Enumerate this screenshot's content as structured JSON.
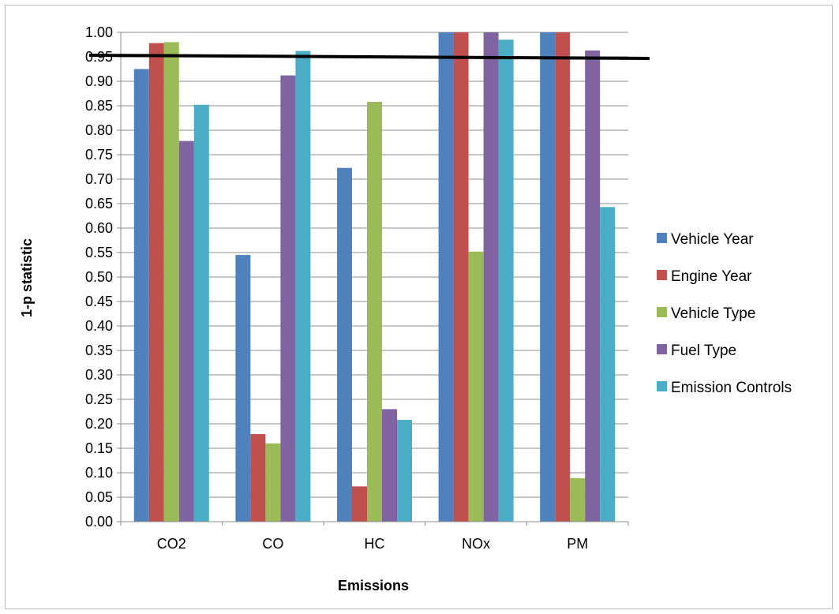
{
  "chart_data": {
    "type": "bar",
    "title": "",
    "xlabel": "Emissions",
    "ylabel": "1-p statistic",
    "ylim": [
      0,
      1
    ],
    "ytick_step": 0.05,
    "grid": true,
    "legend_position": "right",
    "categories": [
      "CO2",
      "CO",
      "HC",
      "NOx",
      "PM"
    ],
    "series": [
      {
        "name": "Vehicle Year",
        "color": "#4F81BD",
        "values": [
          0.925,
          0.545,
          0.723,
          1.0,
          1.0
        ]
      },
      {
        "name": "Engine Year",
        "color": "#C0504D",
        "values": [
          0.978,
          0.179,
          0.072,
          1.0,
          1.0
        ]
      },
      {
        "name": "Vehicle Type",
        "color": "#9BBB59",
        "values": [
          0.98,
          0.16,
          0.858,
          0.552,
          0.089
        ]
      },
      {
        "name": "Fuel Type",
        "color": "#8064A2",
        "values": [
          0.778,
          0.912,
          0.23,
          1.0,
          0.963
        ]
      },
      {
        "name": "Emission Controls",
        "color": "#4BACC6",
        "values": [
          0.852,
          0.962,
          0.208,
          0.985,
          0.643
        ]
      }
    ],
    "reference_line": {
      "value": 0.95,
      "color": "#000000"
    }
  }
}
